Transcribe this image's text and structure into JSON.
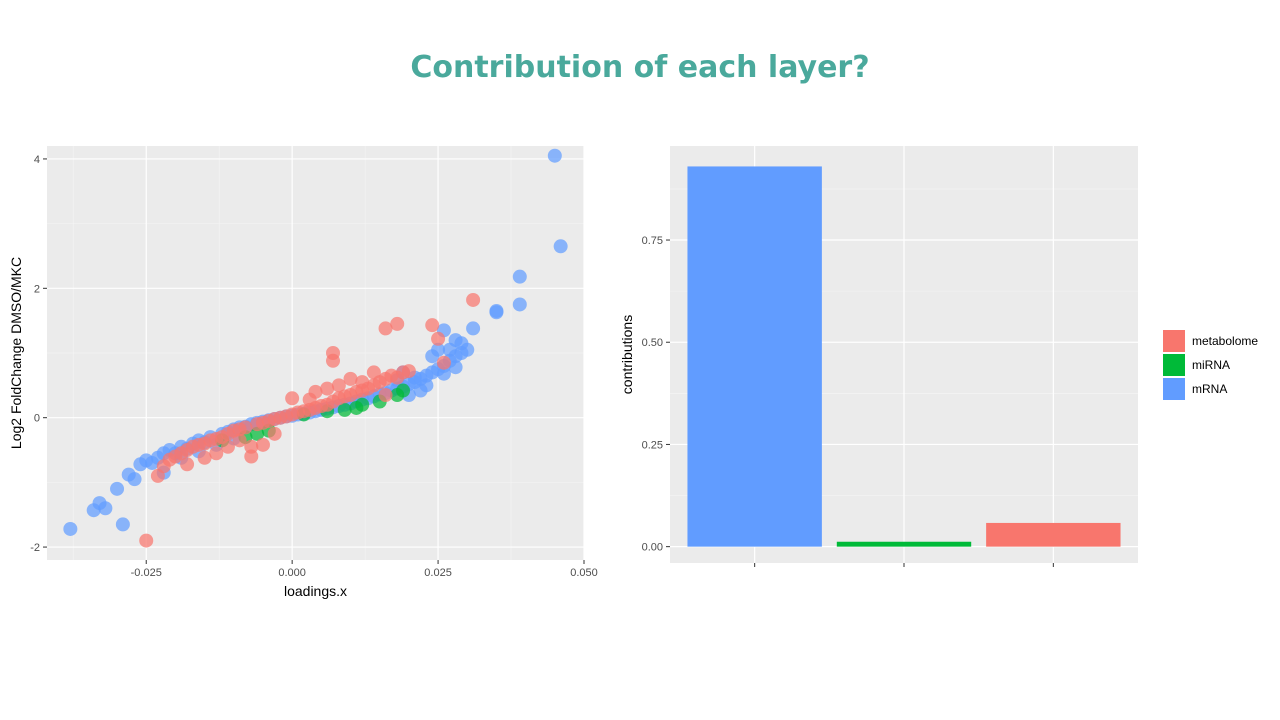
{
  "slide": {
    "title": "Contribution of each layer?"
  },
  "chart_data": [
    {
      "type": "scatter",
      "xlabel": "loadings.x",
      "ylabel": "Log2 FoldChange DMSO/MKC",
      "xlim": [
        -0.042,
        0.05
      ],
      "ylim": [
        -2.2,
        4.2
      ],
      "x_ticks": [
        "-0.025",
        "0.000",
        "0.025",
        "0.050"
      ],
      "x_tick_values": [
        -0.025,
        0,
        0.025,
        0.05
      ],
      "y_ticks": [
        "-2",
        "0",
        "2",
        "4"
      ],
      "y_tick_values": [
        -2,
        0,
        2,
        4
      ],
      "grid": true,
      "series": [
        {
          "name": "mRNA",
          "color": "#619cff",
          "points": [
            [
              -0.038,
              -1.72
            ],
            [
              -0.034,
              -1.43
            ],
            [
              -0.033,
              -1.32
            ],
            [
              -0.032,
              -1.4
            ],
            [
              -0.029,
              -1.65
            ],
            [
              -0.03,
              -1.1
            ],
            [
              -0.028,
              -0.88
            ],
            [
              -0.027,
              -0.95
            ],
            [
              -0.026,
              -0.72
            ],
            [
              -0.025,
              -0.66
            ],
            [
              -0.024,
              -0.7
            ],
            [
              -0.023,
              -0.62
            ],
            [
              -0.022,
              -0.55
            ],
            [
              -0.021,
              -0.5
            ],
            [
              -0.02,
              -0.55
            ],
            [
              -0.019,
              -0.45
            ],
            [
              -0.018,
              -0.48
            ],
            [
              -0.017,
              -0.4
            ],
            [
              -0.016,
              -0.35
            ],
            [
              -0.015,
              -0.38
            ],
            [
              -0.014,
              -0.3
            ],
            [
              -0.012,
              -0.25
            ],
            [
              -0.011,
              -0.22
            ],
            [
              -0.01,
              -0.18
            ],
            [
              -0.009,
              -0.15
            ],
            [
              -0.008,
              -0.14
            ],
            [
              -0.007,
              -0.1
            ],
            [
              -0.006,
              -0.08
            ],
            [
              -0.005,
              -0.06
            ],
            [
              -0.004,
              -0.04
            ],
            [
              -0.003,
              -0.02
            ],
            [
              -0.002,
              0
            ],
            [
              -0.001,
              0.02
            ],
            [
              0,
              0.03
            ],
            [
              0.001,
              0.05
            ],
            [
              0.002,
              0.06
            ],
            [
              0.003,
              0.08
            ],
            [
              0.004,
              0.1
            ],
            [
              0.005,
              0.12
            ],
            [
              0.006,
              0.14
            ],
            [
              0.007,
              0.16
            ],
            [
              0.008,
              0.18
            ],
            [
              0.009,
              0.2
            ],
            [
              0.01,
              0.22
            ],
            [
              0.011,
              0.25
            ],
            [
              0.012,
              0.28
            ],
            [
              0.013,
              0.3
            ],
            [
              0.014,
              0.33
            ],
            [
              0.015,
              0.36
            ],
            [
              0.016,
              0.38
            ],
            [
              0.017,
              0.42
            ],
            [
              0.018,
              0.45
            ],
            [
              0.019,
              0.48
            ],
            [
              0.02,
              0.52
            ],
            [
              0.021,
              0.55
            ],
            [
              0.022,
              0.6
            ],
            [
              0.023,
              0.65
            ],
            [
              0.024,
              0.7
            ],
            [
              0.024,
              0.95
            ],
            [
              0.025,
              0.75
            ],
            [
              0.025,
              1.05
            ],
            [
              0.026,
              0.8
            ],
            [
              0.026,
              1.35
            ],
            [
              0.027,
              0.88
            ],
            [
              0.028,
              0.95
            ],
            [
              0.028,
              1.2
            ],
            [
              0.029,
              1.0
            ],
            [
              0.03,
              1.05
            ],
            [
              0.031,
              1.38
            ],
            [
              0.035,
              1.63
            ],
            [
              0.035,
              1.65
            ],
            [
              0.039,
              1.75
            ],
            [
              0.039,
              2.18
            ],
            [
              0.045,
              4.05
            ],
            [
              0.046,
              2.65
            ],
            [
              -0.022,
              -0.85
            ],
            [
              -0.019,
              -0.62
            ],
            [
              -0.016,
              -0.52
            ],
            [
              -0.013,
              -0.42
            ],
            [
              -0.01,
              -0.32
            ],
            [
              0.02,
              0.35
            ],
            [
              0.022,
              0.42
            ],
            [
              0.023,
              0.5
            ],
            [
              0.021,
              0.62
            ],
            [
              0.019,
              0.7
            ],
            [
              0.018,
              0.58
            ],
            [
              0.027,
              1.05
            ],
            [
              0.029,
              1.15
            ],
            [
              0.028,
              0.78
            ],
            [
              0.026,
              0.68
            ]
          ]
        },
        {
          "name": "miRNA",
          "color": "#00ba38",
          "points": [
            [
              -0.012,
              -0.35
            ],
            [
              -0.008,
              -0.3
            ],
            [
              -0.006,
              -0.25
            ],
            [
              -0.004,
              -0.2
            ],
            [
              0.002,
              0.05
            ],
            [
              0.006,
              0.1
            ],
            [
              0.009,
              0.12
            ],
            [
              0.012,
              0.2
            ],
            [
              0.015,
              0.25
            ],
            [
              0.018,
              0.35
            ],
            [
              0.019,
              0.42
            ],
            [
              0.011,
              0.15
            ]
          ]
        },
        {
          "name": "metabolome",
          "color": "#f8766d",
          "points": [
            [
              -0.025,
              -1.9
            ],
            [
              -0.023,
              -0.9
            ],
            [
              -0.022,
              -0.75
            ],
            [
              -0.021,
              -0.65
            ],
            [
              -0.02,
              -0.6
            ],
            [
              -0.019,
              -0.55
            ],
            [
              -0.018,
              -0.5
            ],
            [
              -0.017,
              -0.45
            ],
            [
              -0.016,
              -0.42
            ],
            [
              -0.015,
              -0.4
            ],
            [
              -0.014,
              -0.35
            ],
            [
              -0.013,
              -0.33
            ],
            [
              -0.012,
              -0.3
            ],
            [
              -0.011,
              -0.25
            ],
            [
              -0.01,
              -0.2
            ],
            [
              -0.009,
              -0.18
            ],
            [
              -0.008,
              -0.15
            ],
            [
              -0.007,
              -0.6
            ],
            [
              -0.007,
              -0.45
            ],
            [
              -0.006,
              -0.1
            ],
            [
              -0.005,
              -0.08
            ],
            [
              -0.004,
              -0.05
            ],
            [
              -0.003,
              -0.02
            ],
            [
              -0.002,
              0
            ],
            [
              -0.001,
              0.02
            ],
            [
              0,
              0.05
            ],
            [
              0.001,
              0.08
            ],
            [
              0.002,
              0.1
            ],
            [
              0.003,
              0.12
            ],
            [
              0.004,
              0.15
            ],
            [
              0.005,
              0.18
            ],
            [
              0.006,
              0.2
            ],
            [
              0.007,
              0.25
            ],
            [
              0.007,
              1.0
            ],
            [
              0.007,
              0.88
            ],
            [
              0.008,
              0.3
            ],
            [
              0.009,
              0.33
            ],
            [
              0.01,
              0.35
            ],
            [
              0.011,
              0.4
            ],
            [
              0.012,
              0.42
            ],
            [
              0.013,
              0.45
            ],
            [
              0.014,
              0.5
            ],
            [
              0.015,
              0.55
            ],
            [
              0.016,
              0.6
            ],
            [
              0.017,
              0.65
            ],
            [
              0.016,
              1.38
            ],
            [
              0.018,
              1.45
            ],
            [
              0.019,
              0.7
            ],
            [
              0.02,
              0.72
            ],
            [
              0.024,
              1.43
            ],
            [
              0.025,
              1.22
            ],
            [
              0.026,
              0.85
            ],
            [
              0.031,
              1.82
            ],
            [
              -0.005,
              -0.42
            ],
            [
              0.0,
              0.3
            ],
            [
              0.004,
              0.4
            ],
            [
              0.008,
              0.5
            ],
            [
              0.012,
              0.55
            ],
            [
              -0.013,
              -0.55
            ],
            [
              -0.018,
              -0.72
            ],
            [
              -0.009,
              -0.35
            ],
            [
              0.014,
              0.7
            ],
            [
              0.01,
              0.6
            ],
            [
              0.006,
              0.45
            ],
            [
              -0.003,
              -0.25
            ],
            [
              0.018,
              0.62
            ],
            [
              0.016,
              0.35
            ],
            [
              0.003,
              0.28
            ],
            [
              -0.015,
              -0.62
            ],
            [
              -0.011,
              -0.45
            ]
          ]
        }
      ]
    },
    {
      "type": "bar",
      "ylabel": "contributions",
      "ylim": [
        -0.04,
        0.98
      ],
      "y_ticks": [
        "0.00",
        "0.25",
        "0.50",
        "0.75"
      ],
      "y_tick_values": [
        0,
        0.25,
        0.5,
        0.75
      ],
      "categories": [
        "mRNA",
        "miRNA",
        "metabolome"
      ],
      "values": [
        0.93,
        0.012,
        0.058
      ],
      "colors": [
        "#619cff",
        "#00ba38",
        "#f8766d"
      ],
      "grid": true,
      "legend": {
        "position": "right",
        "entries": [
          {
            "label": "metabolome",
            "color": "#f8766d"
          },
          {
            "label": "miRNA",
            "color": "#00ba38"
          },
          {
            "label": "mRNA",
            "color": "#619cff"
          }
        ]
      }
    }
  ]
}
